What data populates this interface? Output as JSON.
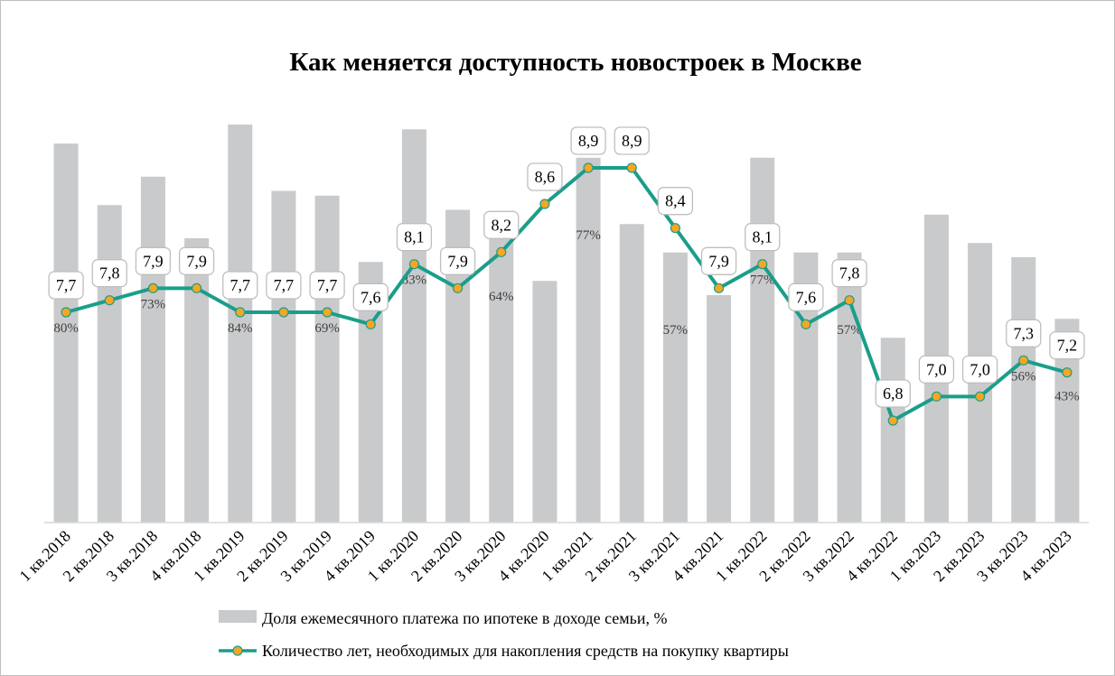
{
  "chart_data": {
    "type": "bar",
    "title": "Как меняется доступность новостроек в Москве",
    "categories": [
      "1 кв.2018",
      "2 кв.2018",
      "3 кв.2018",
      "4 кв.2018",
      "1 кв.2019",
      "2 кв.2019",
      "3 кв.2019",
      "4 кв.2019",
      "1 кв.2020",
      "2 кв.2020",
      "3 кв.2020",
      "4 кв.2020",
      "1 кв.2021",
      "2 кв.2021",
      "3 кв.2021",
      "4 кв.2021",
      "1 кв.2022",
      "2 кв.2022",
      "3 кв.2022",
      "4 кв.2022",
      "1 кв.2023",
      "2 кв.2023",
      "3 кв.2023",
      "4 кв.2023"
    ],
    "series": [
      {
        "name": "Доля ежемесячного платежа по ипотеке в доходе семьи, %",
        "type": "bar",
        "color": "#c9cacc",
        "values": [
          80,
          67,
          73,
          60,
          84,
          70,
          69,
          55,
          83,
          66,
          64,
          51,
          77,
          63,
          57,
          48,
          77,
          57,
          57,
          39,
          65,
          59,
          56,
          43
        ],
        "labels": [
          "80%",
          "",
          "73%",
          "",
          "84%",
          "",
          "69%",
          "",
          "83%",
          "",
          "64%",
          "",
          "77%",
          "",
          "57%",
          "",
          "77%",
          "",
          "57%",
          "",
          "",
          "",
          "56%",
          "43%"
        ]
      },
      {
        "name": "Количество лет, необходимых для накопления средств на покупку квартиры",
        "type": "line",
        "color": "#1a9e8a",
        "marker_color": "#f5a623",
        "values": [
          7.7,
          7.8,
          7.9,
          7.9,
          7.7,
          7.7,
          7.7,
          7.6,
          8.1,
          7.9,
          8.2,
          8.6,
          8.9,
          8.9,
          8.4,
          7.9,
          8.1,
          7.6,
          7.8,
          6.8,
          7.0,
          7.0,
          7.3,
          7.2
        ],
        "labels": [
          "7,7",
          "7,8",
          "7,9",
          "7,9",
          "7,7",
          "7,7",
          "7,7",
          "7,6",
          "8,1",
          "7,9",
          "8,2",
          "8,6",
          "8,9",
          "8,9",
          "8,4",
          "7,9",
          "8,1",
          "7,6",
          "7,8",
          "6,8",
          "7,0",
          "7,0",
          "7,3",
          "7,2"
        ]
      }
    ],
    "bar_axis_range": [
      0,
      84
    ],
    "line_axis_range": [
      6.8,
      8.9
    ],
    "grid": false,
    "legend_position": "bottom"
  }
}
